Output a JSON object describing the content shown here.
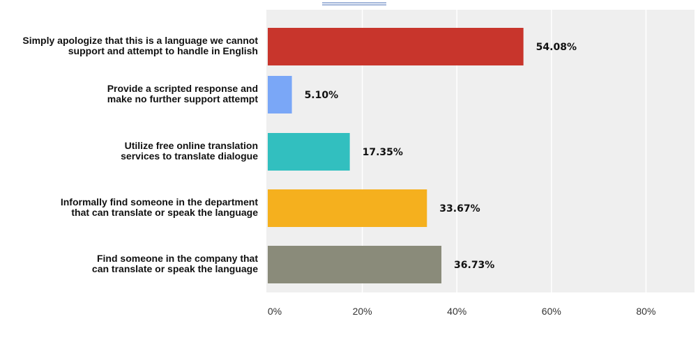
{
  "chart_data": {
    "type": "bar",
    "orientation": "horizontal",
    "categories": [
      "Simply apologize that this is a language we cannot support and attempt to handle in English",
      "Provide a scripted response and make no further support attempt",
      "Utilize free online translation services to translate dialogue",
      "Informally find someone in the department that can translate or speak the language",
      "Find someone in the company that can translate or speak the language"
    ],
    "category_lines": [
      [
        "Simply apologize that this is a language we cannot",
        "support and attempt to handle in English"
      ],
      [
        "Provide a scripted response and",
        "make no further support attempt"
      ],
      [
        "Utilize free online translation",
        "services to translate dialogue"
      ],
      [
        "Informally find someone in the department",
        "that can translate or speak the language"
      ],
      [
        "Find someone in the company that",
        "can translate or speak the language"
      ]
    ],
    "values": [
      54.08,
      5.1,
      17.35,
      33.67,
      36.73
    ],
    "value_labels": [
      "54.08%",
      "5.10%",
      "17.35%",
      "33.67%",
      "36.73%"
    ],
    "colors": [
      "#c8352c",
      "#7aa7f7",
      "#32bfbf",
      "#f5b01e",
      "#8a8b7a"
    ],
    "xlim": [
      0,
      90
    ],
    "x_ticks": [
      0,
      20,
      40,
      60,
      80
    ],
    "x_tick_labels": [
      "0%",
      "20%",
      "40%",
      "60%",
      "80%"
    ],
    "grid": true,
    "plot_background": "#efefef",
    "grid_color": "#ffffff",
    "title": "",
    "xlabel": "",
    "ylabel": ""
  }
}
